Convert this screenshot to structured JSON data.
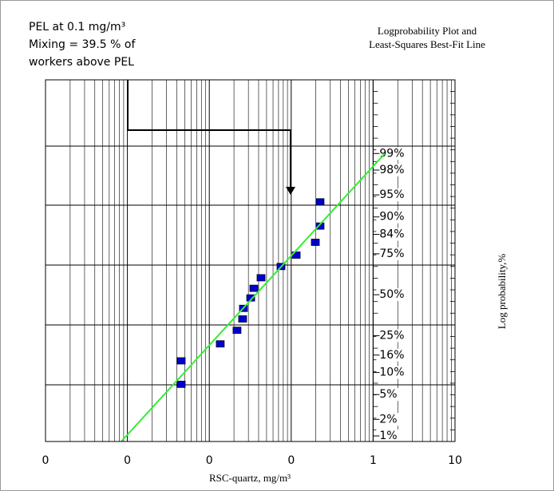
{
  "chart_data": {
    "type": "scatter",
    "title": "Logprobability Plot and",
    "subtitle": "Least-Squares Best-Fit Line",
    "annotation": [
      "PEL at 0.1 mg/m³",
      "Mixing = 39.5 % of",
      "workers above PEL"
    ],
    "x_label": "RSC-quartz, mg/m³",
    "y_label": "Log probability,%",
    "xscale": "log",
    "yscale": "probability",
    "grid": true,
    "xlim": [
      0.0001,
      10
    ],
    "xticks": [
      {
        "value": 0.0001,
        "label": "0"
      },
      {
        "value": 0.001,
        "label": "0"
      },
      {
        "value": 0.01,
        "label": "0"
      },
      {
        "value": 0.1,
        "label": "0"
      },
      1,
      10
    ],
    "ylim": [
      0.78,
      99.98
    ],
    "yticks": [
      {
        "value": 99,
        "label": "99%"
      },
      {
        "value": 98,
        "label": "98%"
      },
      {
        "value": 95,
        "label": "95%"
      },
      {
        "value": 90,
        "label": "90%"
      },
      {
        "value": 84,
        "label": "84%"
      },
      {
        "value": 75,
        "label": "75%"
      },
      {
        "value": 50,
        "label": "50%"
      },
      {
        "value": 25,
        "label": "25%"
      },
      {
        "value": 16,
        "label": "16%"
      },
      {
        "value": 10,
        "label": "10%"
      },
      {
        "value": 5,
        "label": "5%"
      },
      {
        "value": 2,
        "label": "2%"
      },
      {
        "value": 1,
        "label": "1%"
      }
    ],
    "series": [
      {
        "marker": "square",
        "color": "#0000cc",
        "x": [
          0.00454,
          0.00454,
          0.0136,
          0.0218,
          0.0255,
          0.0261,
          0.032,
          0.035,
          0.0428,
          0.075,
          0.115,
          0.197,
          0.225,
          0.225
        ],
        "values": [
          13.8,
          7.0,
          20.9,
          27.9,
          34.5,
          41.1,
          47.9,
          54.2,
          61.0,
          67.9,
          74.3,
          80.6,
          87.1,
          93.7
        ]
      },
      {
        "marker": "line",
        "color": "#33ee33",
        "x": [
          0.00084,
          1.39
        ],
        "values": [
          0.78,
          99
        ]
      }
    ]
  }
}
